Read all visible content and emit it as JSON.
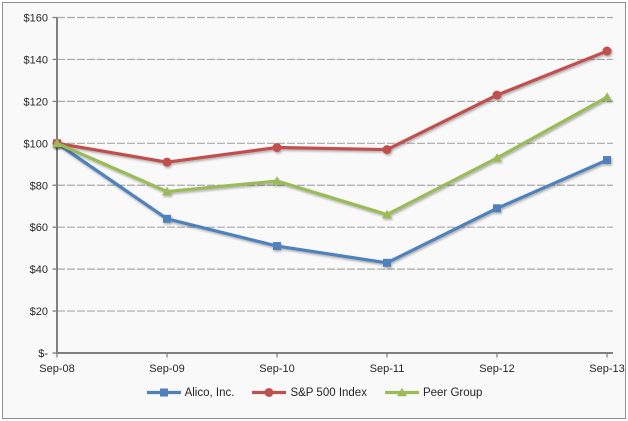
{
  "chart_data": {
    "type": "line",
    "title": "",
    "categories": [
      "Sep-08",
      "Sep-09",
      "Sep-10",
      "Sep-11",
      "Sep-12",
      "Sep-13"
    ],
    "series": [
      {
        "name": "Alico, Inc.",
        "color": "#4F81BD",
        "marker": "square",
        "values": [
          100,
          64,
          51,
          43,
          69,
          92
        ]
      },
      {
        "name": "S&P 500 Index",
        "color": "#C0504D",
        "marker": "circle",
        "values": [
          100,
          91,
          98,
          97,
          123,
          144
        ]
      },
      {
        "name": "Peer Group",
        "color": "#9BBB59",
        "marker": "triangle",
        "values": [
          100,
          77,
          82,
          66,
          93,
          122
        ]
      }
    ],
    "y_axis": {
      "min": 0,
      "max": 160,
      "ticks": [
        {
          "label": "$160",
          "value": 160
        },
        {
          "label": "$140",
          "value": 140
        },
        {
          "label": "$120",
          "value": 120
        },
        {
          "label": "$100",
          "value": 100
        },
        {
          "label": "$80",
          "value": 80
        },
        {
          "label": "$60",
          "value": 60
        },
        {
          "label": "$40",
          "value": 40
        },
        {
          "label": "$20",
          "value": 20
        },
        {
          "label": "$-",
          "value": 0
        }
      ]
    },
    "grid": true,
    "grid_color": "#a9a9a9",
    "axis_color": "#808080",
    "text_color": "#262626",
    "legend_position": "bottom"
  }
}
